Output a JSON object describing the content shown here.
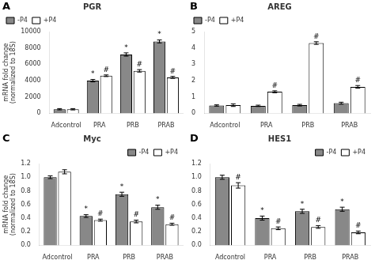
{
  "chart_data": [
    {
      "type": "bar",
      "panel_label": "A",
      "title": "PGR",
      "categories": [
        "Adcontrol",
        "PRA",
        "PRB",
        "PRAB"
      ],
      "series": [
        {
          "name": "-P4",
          "color": "#888888",
          "values": [
            500,
            4000,
            7200,
            8800
          ],
          "errors": [
            80,
            150,
            200,
            180
          ],
          "annotations": [
            null,
            "*",
            "*",
            "*"
          ]
        },
        {
          "name": "+P4",
          "color": "#ffffff",
          "values": [
            500,
            4600,
            5200,
            4400
          ],
          "errors": [
            80,
            100,
            150,
            120
          ],
          "annotations": [
            null,
            "#",
            "#",
            "#"
          ]
        }
      ],
      "ylim": [
        0,
        10000
      ],
      "yticks": [
        0,
        2000,
        4000,
        6000,
        8000,
        10000
      ],
      "ylabel": "mRNA fold change\n(normalized to 18S)",
      "legend": "upper left",
      "grid": false
    },
    {
      "type": "bar",
      "panel_label": "B",
      "title": "AREG",
      "categories": [
        "Adcontrol",
        "PRA",
        "PRB",
        "PRAB"
      ],
      "series": [
        {
          "name": "-P4",
          "color": "#888888",
          "values": [
            0.48,
            0.46,
            0.5,
            0.62
          ],
          "errors": [
            0.04,
            0.04,
            0.05,
            0.06
          ],
          "annotations": [
            null,
            null,
            null,
            null
          ]
        },
        {
          "name": "+P4",
          "color": "#ffffff",
          "values": [
            0.5,
            1.32,
            4.3,
            1.62
          ],
          "errors": [
            0.08,
            0.06,
            0.08,
            0.08
          ],
          "annotations": [
            null,
            "#",
            "#",
            "#"
          ]
        }
      ],
      "ylim": [
        0,
        5
      ],
      "yticks": [
        0,
        1,
        2,
        3,
        4,
        5
      ],
      "legend": "upper left",
      "grid": false
    },
    {
      "type": "bar",
      "panel_label": "C",
      "title": "Myc",
      "categories": [
        "Adcontrol",
        "PRA",
        "PRB",
        "PRAB"
      ],
      "series": [
        {
          "name": "-P4",
          "color": "#888888",
          "values": [
            1.0,
            0.43,
            0.75,
            0.56
          ],
          "errors": [
            0.02,
            0.02,
            0.03,
            0.03
          ],
          "annotations": [
            null,
            "*",
            "*",
            "*"
          ]
        },
        {
          "name": "+P4",
          "color": "#ffffff",
          "values": [
            1.08,
            0.37,
            0.35,
            0.31
          ],
          "errors": [
            0.03,
            0.015,
            0.02,
            0.015
          ],
          "annotations": [
            null,
            "#",
            "#",
            "#"
          ]
        }
      ],
      "ylim": [
        0,
        1.2
      ],
      "yticks": [
        {
          "value": 0,
          "label": "0.0"
        },
        0.2,
        0.4,
        0.6,
        0.8,
        {
          "value": 1,
          "label": "1.0"
        },
        1.2
      ],
      "ylabel": "mRNA fold change\n(normalized to 18S)",
      "legend": "upper right",
      "grid": false
    },
    {
      "type": "bar",
      "panel_label": "D",
      "title": "HES1",
      "categories": [
        "Adcontrol",
        "PRA",
        "PRB",
        "PRAB"
      ],
      "series": [
        {
          "name": "-P4",
          "color": "#888888",
          "values": [
            1.0,
            0.4,
            0.5,
            0.53
          ],
          "errors": [
            0.03,
            0.03,
            0.03,
            0.03
          ],
          "annotations": [
            null,
            "*",
            "*",
            "*"
          ]
        },
        {
          "name": "+P4",
          "color": "#ffffff",
          "values": [
            0.88,
            0.25,
            0.27,
            0.19
          ],
          "errors": [
            0.04,
            0.02,
            0.02,
            0.02
          ],
          "annotations": [
            "#",
            "#",
            "#",
            "#"
          ]
        }
      ],
      "ylim": [
        0,
        1.2
      ],
      "yticks": [
        {
          "value": 0,
          "label": "0.0"
        },
        0.2,
        0.4,
        0.6,
        0.8,
        {
          "value": 1,
          "label": "1.0"
        },
        1.2
      ],
      "legend": "upper right",
      "grid": false
    }
  ]
}
